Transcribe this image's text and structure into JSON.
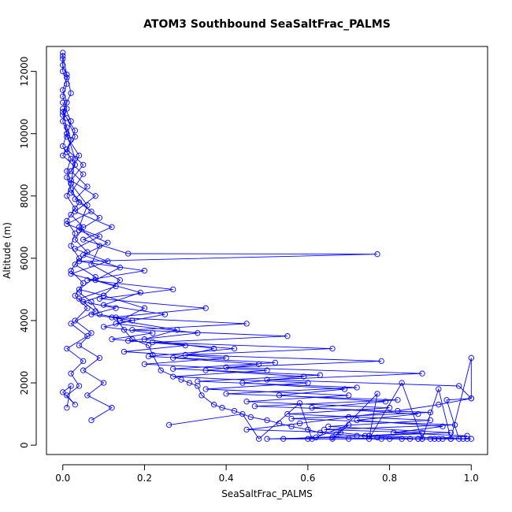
{
  "chart_data": {
    "type": "line",
    "title": "ATOM3 Southbound SeaSaltFrac_PALMS",
    "xlabel": "SeaSaltFrac_PALMS",
    "ylabel": "Altitude (m)",
    "xlim": [
      -0.04,
      1.04
    ],
    "ylim": [
      -300,
      12800
    ],
    "xticks": [
      0,
      0.2,
      0.4,
      0.6,
      0.8,
      1
    ],
    "xtick_labels": [
      "0.0",
      "0.2",
      "0.4",
      "0.6",
      "0.8",
      "1.0"
    ],
    "yticks": [
      0,
      2000,
      4000,
      6000,
      8000,
      10000,
      12000
    ],
    "ytick_labels": [
      "0",
      "2000",
      "4000",
      "6000",
      "8000",
      "10000",
      "12000"
    ],
    "grid": false,
    "marker": "open-circle",
    "color": "#0000ff",
    "series": [
      {
        "name": "",
        "x": [
          0.0,
          0.0,
          0.01,
          0.0,
          0.01,
          0.0,
          0.01,
          0.02,
          0.01,
          0.03,
          0.01,
          0.02,
          0.04,
          0.02,
          0.05,
          0.03,
          0.06,
          0.03,
          0.08,
          0.04,
          0.1,
          0.05,
          0.13,
          0.07,
          0.17,
          0.1,
          0.22,
          0.12,
          0.3,
          0.15,
          0.4,
          0.2,
          0.5,
          0.27,
          0.6,
          0.35,
          0.7,
          0.45,
          0.8,
          0.55,
          0.9,
          0.65,
          0.95,
          0.75,
          1.0,
          0.85,
          0.92,
          0.7,
          0.6,
          0.5,
          0.66,
          0.8,
          0.88,
          0.95,
          0.99
        ],
        "y": [
          12600,
          12200,
          11800,
          11400,
          11000,
          10600,
          10200,
          9800,
          9400,
          9000,
          8600,
          8200,
          7800,
          7400,
          7000,
          6600,
          6200,
          5800,
          5400,
          5000,
          4800,
          4600,
          4400,
          4200,
          4000,
          3800,
          3600,
          3400,
          3200,
          3000,
          2800,
          2600,
          2400,
          2200,
          2000,
          1800,
          1600,
          1400,
          1200,
          1000,
          800,
          600,
          400,
          300,
          200,
          200,
          200,
          200,
          200,
          200,
          250,
          200,
          200,
          200,
          200
        ]
      },
      {
        "name": "",
        "x": [
          0.0,
          0.01,
          0.02,
          0.0,
          0.03,
          0.01,
          0.05,
          0.02,
          0.08,
          0.03,
          0.12,
          0.05,
          0.16,
          0.77,
          0.04,
          0.2,
          0.06,
          0.27,
          0.09,
          0.35,
          0.12,
          0.45,
          0.17,
          0.55,
          0.22,
          0.66,
          0.3,
          0.78,
          0.4,
          0.88,
          0.5,
          0.97,
          1.0,
          0.92,
          0.82,
          0.7,
          0.58,
          0.45,
          0.68,
          0.75,
          0.87,
          0.93,
          0.98
        ],
        "y": [
          12500,
          11900,
          11300,
          10700,
          10100,
          9500,
          9000,
          8500,
          8000,
          7500,
          7000,
          6600,
          6150,
          6130,
          5900,
          5600,
          5300,
          5000,
          4700,
          4400,
          4100,
          3900,
          3700,
          3500,
          3300,
          3100,
          2900,
          2700,
          2500,
          2300,
          2100,
          1900,
          1500,
          1300,
          1100,
          900,
          700,
          500,
          400,
          300,
          200,
          200,
          200
        ]
      },
      {
        "name": "",
        "x": [
          0.0,
          0.02,
          0.01,
          0.04,
          0.02,
          0.06,
          0.03,
          0.09,
          0.04,
          0.11,
          0.05,
          0.14,
          0.08,
          0.19,
          0.1,
          0.25,
          0.13,
          0.33,
          0.16,
          0.42,
          0.21,
          0.52,
          0.27,
          0.63,
          0.33,
          0.72,
          0.4,
          0.82,
          0.47,
          0.9,
          0.56,
          0.96,
          0.64,
          0.88,
          0.74,
          0.62,
          0.54,
          0.78,
          0.91
        ],
        "y": [
          11000,
          10400,
          9900,
          9300,
          8800,
          8300,
          7900,
          7300,
          6900,
          6500,
          6100,
          5700,
          5300,
          4900,
          4500,
          4200,
          3900,
          3600,
          3350,
          3100,
          2850,
          2650,
          2450,
          2250,
          2050,
          1850,
          1650,
          1450,
          1250,
          1050,
          850,
          650,
          500,
          400,
          300,
          250,
          200,
          200,
          200
        ]
      },
      {
        "name": "",
        "x": [
          0.0,
          0.01,
          0.03,
          0.02,
          0.06,
          0.04,
          0.09,
          0.07,
          0.14,
          0.1,
          0.2,
          0.14,
          0.28,
          0.2,
          0.37,
          0.27,
          0.48,
          0.35,
          0.59,
          0.44,
          0.69,
          0.53,
          0.79,
          0.61,
          0.87,
          0.72,
          0.93,
          0.81,
          0.99,
          0.9
        ],
        "y": [
          10800,
          10000,
          9200,
          8400,
          7700,
          7000,
          6400,
          5800,
          5300,
          4800,
          4400,
          4000,
          3700,
          3400,
          3100,
          2800,
          2600,
          2400,
          2200,
          2000,
          1800,
          1600,
          1400,
          1200,
          1000,
          800,
          600,
          400,
          300,
          200
        ]
      },
      {
        "name": "",
        "x": [
          0.0,
          0.0,
          0.01,
          0.0,
          0.01,
          0.0,
          0.01,
          0.0,
          0.02,
          0.01,
          0.02,
          0.01,
          0.03,
          0.01,
          0.03,
          0.02,
          0.04,
          0.02,
          0.05,
          0.03,
          0.06,
          0.03,
          0.07,
          0.04,
          0.09,
          0.05,
          0.1,
          0.06,
          0.12,
          0.07
        ],
        "y": [
          12400,
          12000,
          11600,
          11200,
          10800,
          10400,
          10000,
          9600,
          9200,
          8800,
          8400,
          8000,
          7600,
          7200,
          6800,
          6400,
          6000,
          5600,
          5200,
          4800,
          4400,
          4000,
          3600,
          3200,
          2800,
          2400,
          2000,
          1600,
          1200,
          800
        ]
      },
      {
        "name": "",
        "x": [
          0.01,
          0.03,
          0.0,
          0.05,
          0.02,
          0.07,
          0.01,
          0.09,
          0.03,
          0.11,
          0.02,
          0.13,
          0.04,
          0.08,
          0.02,
          0.06,
          0.01,
          0.05,
          0.02,
          0.04,
          0.01,
          0.03,
          0.0,
          0.02,
          0.01
        ],
        "y": [
          10500,
          9900,
          9300,
          8700,
          8100,
          7500,
          7100,
          6700,
          6300,
          5900,
          5500,
          5100,
          4700,
          4300,
          3900,
          3500,
          3100,
          2700,
          2300,
          1900,
          1600,
          1300,
          1700,
          1900,
          1200
        ]
      },
      {
        "name": "",
        "x": [
          0.26,
          0.44,
          0.48,
          0.58,
          0.61,
          0.7,
          0.66,
          0.77,
          0.75,
          0.83,
          0.88,
          0.92,
          0.95,
          1.0,
          1.0,
          0.94,
          0.97
        ],
        "y": [
          650,
          1000,
          200,
          1350,
          200,
          650,
          200,
          1650,
          200,
          2000,
          200,
          1800,
          200,
          2800,
          1500,
          1450,
          200
        ]
      },
      {
        "name": "",
        "x": [
          0.04,
          0.07,
          0.09,
          0.13,
          0.15,
          0.17,
          0.21,
          0.22,
          0.24,
          0.29,
          0.31,
          0.33,
          0.34,
          0.37,
          0.39,
          0.42,
          0.46,
          0.5,
          0.53,
          0.56,
          0.6,
          0.63,
          0.67,
          0.72,
          0.77,
          0.83,
          0.87
        ],
        "y": [
          4900,
          4600,
          4200,
          4100,
          3700,
          3400,
          3200,
          2900,
          2400,
          2100,
          2000,
          1900,
          1600,
          1300,
          1200,
          1100,
          900,
          800,
          700,
          600,
          500,
          400,
          350,
          300,
          250,
          200,
          200
        ]
      }
    ]
  }
}
